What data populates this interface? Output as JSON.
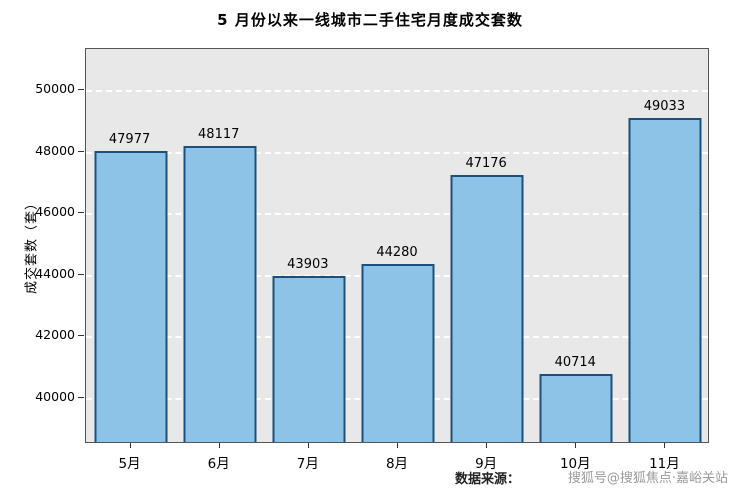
{
  "chart_data": {
    "type": "bar",
    "title": "5 月份以来一线城市二手住宅月度成交套数",
    "categories": [
      "5月",
      "6月",
      "7月",
      "8月",
      "9月",
      "10月",
      "11月"
    ],
    "values": [
      47977,
      48117,
      43903,
      44280,
      47176,
      40714,
      49033
    ],
    "xlabel": "",
    "ylabel": "成交套数（套）",
    "ylim": [
      38500,
      51350
    ],
    "yticks": [
      40000,
      42000,
      44000,
      46000,
      48000,
      50000
    ],
    "grid": "horizontal-dashed-white",
    "legend": "none",
    "bar_fill": "#8cc3e6",
    "bar_edge": "#1c4f7c",
    "plot_bg": "#e8e8e8"
  },
  "footer": {
    "source_text": "数据来源：",
    "watermark": "搜狐号@搜狐焦点·嘉峪关站"
  }
}
